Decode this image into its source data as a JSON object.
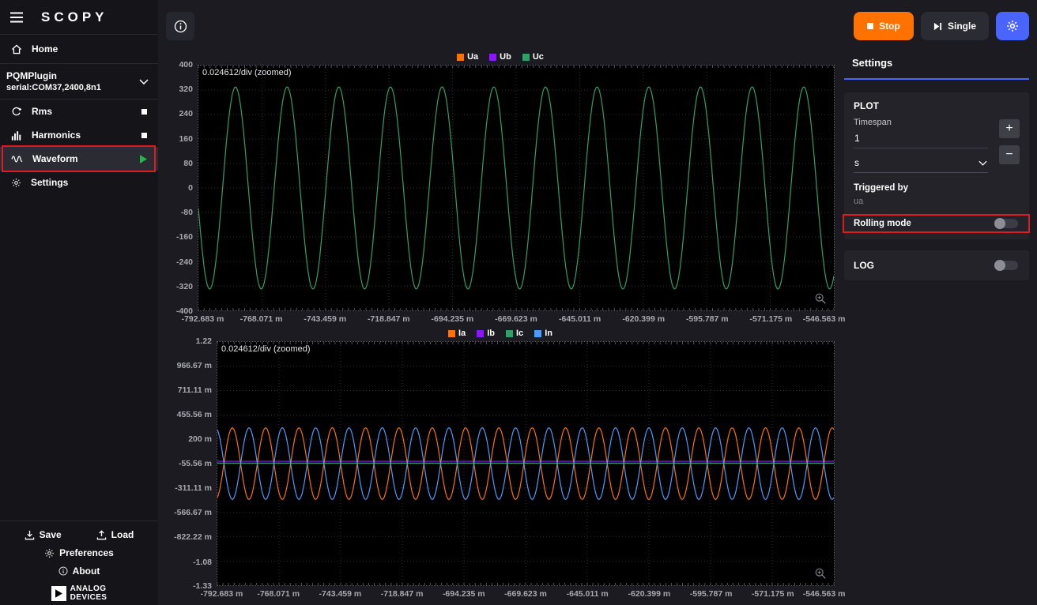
{
  "app": {
    "logo": "SCOPY"
  },
  "sidebar": {
    "home": {
      "label": "Home"
    },
    "plugin": {
      "name": "PQMPlugin",
      "serial": "serial:COM37,2400,8n1"
    },
    "tools": [
      {
        "label": "Rms",
        "status": "stopped"
      },
      {
        "label": "Harmonics",
        "status": "stopped"
      },
      {
        "label": "Waveform",
        "status": "running"
      },
      {
        "label": "Settings"
      }
    ],
    "footer": {
      "save": "Save",
      "load": "Load",
      "preferences": "Preferences",
      "about": "About",
      "brand_line1": "ANALOG",
      "brand_line2": "DEVICES"
    }
  },
  "topbar": {
    "stop": "Stop",
    "single": "Single"
  },
  "settings_panel": {
    "title": "Settings",
    "plot_section": "PLOT",
    "timespan_label": "Timespan",
    "timespan_value": "1",
    "unit_value": "s",
    "plus_label": "+",
    "minus_label": "−",
    "triggered_by_label": "Triggered by",
    "triggered_by_value": "ua",
    "rolling_mode_label": "Rolling mode",
    "rolling_mode_state": "off",
    "log_label": "LOG",
    "log_state": "off"
  },
  "colors": {
    "accent_orange": "#ff7200",
    "accent_blue": "#4a64ff",
    "annotation_red": "#dd1b20",
    "ch_orange": "#ff7200",
    "ch_purple": "#9013fe",
    "ch_green": "#2fa068",
    "ch_blue": "#4a9cff"
  },
  "chart_data": [
    {
      "type": "line",
      "title": "Voltage waveform",
      "annotation": "0.024612/div (zoomed)",
      "legend": [
        {
          "name": "Ua",
          "color": "#ff7200"
        },
        {
          "name": "Ub",
          "color": "#9013fe"
        },
        {
          "name": "Uc",
          "color": "#2fa068"
        }
      ],
      "legend_position": "top-center",
      "grid": true,
      "ylim": [
        -400,
        400
      ],
      "yticks": [
        {
          "label": "400",
          "value": 400
        },
        {
          "label": "320",
          "value": 320
        },
        {
          "label": "240",
          "value": 240
        },
        {
          "label": "160",
          "value": 160
        },
        {
          "label": "80",
          "value": 80
        },
        {
          "label": "0",
          "value": 0
        },
        {
          "label": "-80",
          "value": -80
        },
        {
          "label": "-160",
          "value": -160
        },
        {
          "label": "-240",
          "value": -240
        },
        {
          "label": "-320",
          "value": -320
        },
        {
          "label": "-400",
          "value": -400
        }
      ],
      "xticks": [
        "-792.683 m",
        "-768.071 m",
        "-743.459 m",
        "-718.847 m",
        "-694.235 m",
        "-669.623 m",
        "-645.011 m",
        "-620.399 m",
        "-595.787 m",
        "-571.175 m",
        "-546.563 m"
      ],
      "series": [
        {
          "name": "Uc",
          "color": "#2fa068",
          "kind": "sine",
          "amplitude": 330,
          "offset": 0,
          "cycles": 12.3,
          "phase": -2.94
        }
      ]
    },
    {
      "type": "line",
      "title": "Current waveform",
      "annotation": "0.024612/div (zoomed)",
      "legend": [
        {
          "name": "Ia",
          "color": "#ff7200"
        },
        {
          "name": "Ib",
          "color": "#9013fe"
        },
        {
          "name": "Ic",
          "color": "#2fa068"
        },
        {
          "name": "In",
          "color": "#4a9cff"
        }
      ],
      "legend_position": "top-center",
      "grid": true,
      "ylim": [
        -1.33,
        1.22
      ],
      "yticks": [
        {
          "label": "1.22",
          "value": 1.22
        },
        {
          "label": "966.67 m",
          "value": 0.96667
        },
        {
          "label": "711.11 m",
          "value": 0.71111
        },
        {
          "label": "455.56 m",
          "value": 0.45556
        },
        {
          "label": "200 m",
          "value": 0.2
        },
        {
          "label": "-55.56 m",
          "value": -0.05556
        },
        {
          "label": "-311.11 m",
          "value": -0.31111
        },
        {
          "label": "-566.67 m",
          "value": -0.56667
        },
        {
          "label": "-822.22 m",
          "value": -0.82222
        },
        {
          "label": "-1.08",
          "value": -1.08
        },
        {
          "label": "-1.33",
          "value": -1.33
        }
      ],
      "xticks": [
        "-792.683 m",
        "-768.071 m",
        "-743.459 m",
        "-718.847 m",
        "-694.235 m",
        "-669.623 m",
        "-645.011 m",
        "-620.399 m",
        "-595.787 m",
        "-571.175 m",
        "-546.563 m"
      ],
      "series": [
        {
          "name": "Ic",
          "color": "#2fa068",
          "kind": "flat",
          "amplitude": 0,
          "offset": -0.05,
          "cycles": 0,
          "phase": 0
        },
        {
          "name": "Ib",
          "color": "#9013fe",
          "kind": "flat",
          "amplitude": 0,
          "offset": -0.03,
          "cycles": 0,
          "phase": 0
        },
        {
          "name": "Ia",
          "color": "#ff7200",
          "kind": "sine",
          "amplitude": 0.375,
          "offset": -0.055,
          "cycles": 18.5,
          "phase": -1.25
        },
        {
          "name": "In",
          "color": "#4a9cff",
          "kind": "sine",
          "amplitude": 0.375,
          "offset": -0.055,
          "cycles": 18.5,
          "phase": 1.89
        }
      ]
    }
  ]
}
